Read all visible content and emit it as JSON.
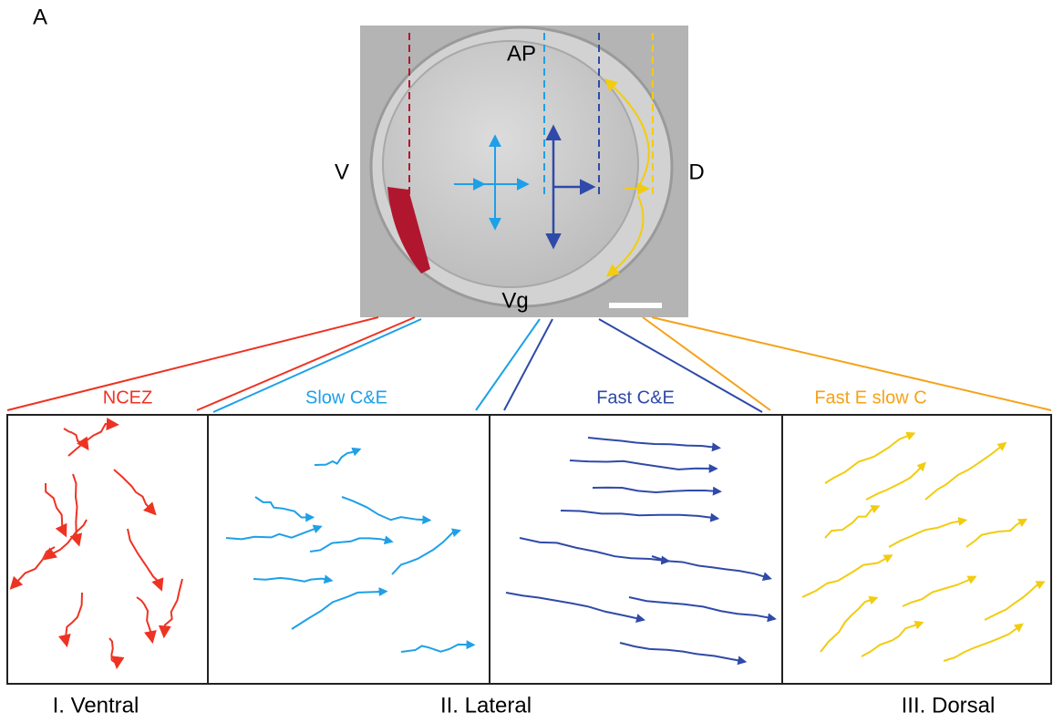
{
  "figure_label": "A",
  "embryo": {
    "top": "AP",
    "left": "V",
    "right": "D",
    "bottom": "Vg"
  },
  "panels": [
    {
      "title": "NCEZ"
    },
    {
      "title": "Slow C&E"
    },
    {
      "title": "Fast C&E"
    },
    {
      "title": "Fast E slow C"
    }
  ],
  "regions": [
    "I. Ventral",
    "II. Lateral",
    "III. Dorsal"
  ]
}
